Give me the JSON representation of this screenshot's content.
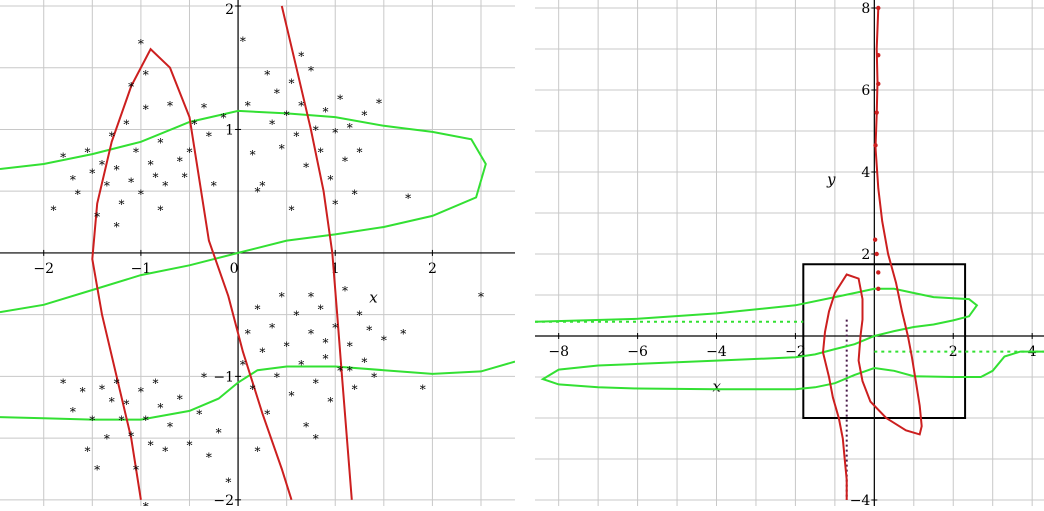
{
  "chart_data": [
    {
      "type": "scatter",
      "xlabel": "x",
      "ylabel": "",
      "xlim": [
        -2.45,
        2.85
      ],
      "ylim": [
        -2.05,
        2.0
      ],
      "grid": true,
      "x_ticks": [
        -2,
        -1,
        0,
        1,
        2
      ],
      "y_ticks": [
        -2,
        -1,
        1,
        2
      ],
      "marker": "*",
      "colors": {
        "red_curve": "#cc1f1f",
        "green_curve": "#33e033",
        "points": "#000000",
        "grid": "#c8c8c8"
      },
      "red_curves": [
        [
          [
            -1.0,
            -2.0
          ],
          [
            -1.1,
            -1.5
          ],
          [
            -1.25,
            -1.0
          ],
          [
            -1.4,
            -0.5
          ],
          [
            -1.5,
            -0.05
          ],
          [
            -1.45,
            0.4
          ],
          [
            -1.3,
            0.9
          ],
          [
            -1.1,
            1.35
          ],
          [
            -0.9,
            1.65
          ],
          [
            -0.7,
            1.5
          ],
          [
            -0.5,
            1.1
          ],
          [
            -0.4,
            0.6
          ],
          [
            -0.3,
            0.1
          ],
          [
            -0.1,
            -0.35
          ],
          [
            0.05,
            -0.8
          ],
          [
            0.25,
            -1.3
          ],
          [
            0.45,
            -1.75
          ],
          [
            0.55,
            -2.0
          ]
        ],
        [
          [
            0.45,
            2.0
          ],
          [
            0.6,
            1.5
          ],
          [
            0.75,
            1.0
          ],
          [
            0.88,
            0.5
          ],
          [
            0.97,
            0.0
          ],
          [
            1.02,
            -0.5
          ],
          [
            1.07,
            -1.0
          ],
          [
            1.12,
            -1.5
          ],
          [
            1.17,
            -2.0
          ]
        ]
      ],
      "green_curves": [
        [
          [
            -2.45,
            0.68
          ],
          [
            -2.0,
            0.72
          ],
          [
            -1.5,
            0.8
          ],
          [
            -1.0,
            0.9
          ],
          [
            -0.5,
            1.06
          ],
          [
            0.0,
            1.15
          ],
          [
            0.5,
            1.13
          ],
          [
            1.0,
            1.1
          ],
          [
            1.5,
            1.03
          ],
          [
            2.0,
            0.98
          ],
          [
            2.4,
            0.92
          ],
          [
            2.55,
            0.72
          ],
          [
            2.45,
            0.45
          ],
          [
            2.0,
            0.3
          ],
          [
            1.5,
            0.21
          ],
          [
            1.0,
            0.15
          ],
          [
            0.5,
            0.1
          ],
          [
            0.0,
            0.0
          ],
          [
            -0.5,
            -0.1
          ],
          [
            -1.0,
            -0.18
          ],
          [
            -1.5,
            -0.3
          ],
          [
            -2.0,
            -0.42
          ],
          [
            -2.45,
            -0.48
          ]
        ],
        [
          [
            -2.45,
            -1.33
          ],
          [
            -2.0,
            -1.34
          ],
          [
            -1.5,
            -1.35
          ],
          [
            -1.0,
            -1.35
          ],
          [
            -0.5,
            -1.28
          ],
          [
            -0.2,
            -1.18
          ],
          [
            0.0,
            -1.05
          ],
          [
            0.2,
            -0.95
          ],
          [
            0.5,
            -0.92
          ],
          [
            1.0,
            -0.92
          ],
          [
            1.5,
            -0.95
          ],
          [
            2.0,
            -0.98
          ],
          [
            2.5,
            -0.96
          ],
          [
            2.85,
            -0.88
          ]
        ]
      ],
      "points": [
        [
          -1.9,
          0.35
        ],
        [
          -1.8,
          0.78
        ],
        [
          -1.7,
          0.6
        ],
        [
          -1.65,
          0.48
        ],
        [
          -1.55,
          0.82
        ],
        [
          -1.5,
          0.65
        ],
        [
          -1.45,
          0.3
        ],
        [
          -1.4,
          0.72
        ],
        [
          -1.35,
          0.55
        ],
        [
          -1.3,
          0.95
        ],
        [
          -1.25,
          0.68
        ],
        [
          -1.2,
          0.4
        ],
        [
          -1.15,
          1.05
        ],
        [
          -1.1,
          0.58
        ],
        [
          -1.05,
          0.82
        ],
        [
          -1.0,
          0.48
        ],
        [
          -0.95,
          1.17
        ],
        [
          -0.9,
          0.72
        ],
        [
          -0.85,
          0.62
        ],
        [
          -0.8,
          0.9
        ],
        [
          -0.75,
          0.55
        ],
        [
          -0.7,
          1.2
        ],
        [
          -0.6,
          0.75
        ],
        [
          -0.5,
          0.82
        ],
        [
          -0.45,
          1.05
        ],
        [
          -0.35,
          1.18
        ],
        [
          -0.3,
          0.95
        ],
        [
          -0.25,
          0.55
        ],
        [
          -0.15,
          1.1
        ],
        [
          -1.1,
          1.35
        ],
        [
          -0.95,
          1.45
        ],
        [
          -1.25,
          0.22
        ],
        [
          -0.55,
          0.62
        ],
        [
          -1.0,
          1.7
        ],
        [
          -0.8,
          0.35
        ],
        [
          0.05,
          1.72
        ],
        [
          0.1,
          1.2
        ],
        [
          0.15,
          0.8
        ],
        [
          0.2,
          0.5
        ],
        [
          0.3,
          1.45
        ],
        [
          0.35,
          1.05
        ],
        [
          0.4,
          1.3
        ],
        [
          0.45,
          0.85
        ],
        [
          0.5,
          1.12
        ],
        [
          0.55,
          1.38
        ],
        [
          0.6,
          0.95
        ],
        [
          0.65,
          1.2
        ],
        [
          0.7,
          0.7
        ],
        [
          0.75,
          1.48
        ],
        [
          0.8,
          1.0
        ],
        [
          0.85,
          0.82
        ],
        [
          0.9,
          1.15
        ],
        [
          0.95,
          0.6
        ],
        [
          1.0,
          0.98
        ],
        [
          1.05,
          1.25
        ],
        [
          1.1,
          0.75
        ],
        [
          1.15,
          1.02
        ],
        [
          1.2,
          0.48
        ],
        [
          1.25,
          0.82
        ],
        [
          1.3,
          1.12
        ],
        [
          1.45,
          1.22
        ],
        [
          0.25,
          0.55
        ],
        [
          0.55,
          0.35
        ],
        [
          1.0,
          0.4
        ],
        [
          0.65,
          1.6
        ],
        [
          1.75,
          0.45
        ],
        [
          0.05,
          -0.9
        ],
        [
          0.1,
          -0.65
        ],
        [
          0.15,
          -1.1
        ],
        [
          0.2,
          -0.45
        ],
        [
          0.25,
          -0.8
        ],
        [
          0.3,
          -1.3
        ],
        [
          0.35,
          -0.6
        ],
        [
          0.4,
          -1.0
        ],
        [
          0.45,
          -0.35
        ],
        [
          0.5,
          -0.75
        ],
        [
          0.55,
          -1.15
        ],
        [
          0.6,
          -0.5
        ],
        [
          0.65,
          -0.9
        ],
        [
          0.7,
          -1.4
        ],
        [
          0.75,
          -0.65
        ],
        [
          0.8,
          -1.05
        ],
        [
          0.85,
          -0.45
        ],
        [
          0.9,
          -0.85
        ],
        [
          0.95,
          -1.2
        ],
        [
          1.0,
          -0.6
        ],
        [
          1.05,
          -0.95
        ],
        [
          1.1,
          -0.3
        ],
        [
          1.15,
          -0.75
        ],
        [
          1.2,
          -1.1
        ],
        [
          1.25,
          -0.5
        ],
        [
          1.3,
          -0.88
        ],
        [
          1.35,
          -0.62
        ],
        [
          1.4,
          -1.0
        ],
        [
          1.5,
          -0.7
        ],
        [
          1.7,
          -0.65
        ],
        [
          1.9,
          -1.1
        ],
        [
          0.8,
          -1.5
        ],
        [
          0.2,
          -1.6
        ],
        [
          2.5,
          -0.35
        ],
        [
          0.75,
          -0.35
        ],
        [
          1.15,
          -0.95
        ],
        [
          0.9,
          -0.72
        ],
        [
          -1.8,
          -1.05
        ],
        [
          -1.7,
          -1.28
        ],
        [
          -1.6,
          -1.12
        ],
        [
          -1.5,
          -1.35
        ],
        [
          -1.4,
          -1.1
        ],
        [
          -1.35,
          -1.5
        ],
        [
          -1.3,
          -1.2
        ],
        [
          -1.25,
          -1.05
        ],
        [
          -1.2,
          -1.35
        ],
        [
          -1.15,
          -1.22
        ],
        [
          -1.1,
          -1.48
        ],
        [
          -1.0,
          -1.12
        ],
        [
          -0.95,
          -1.35
        ],
        [
          -0.9,
          -1.55
        ],
        [
          -0.85,
          -1.05
        ],
        [
          -0.8,
          -1.25
        ],
        [
          -0.7,
          -1.4
        ],
        [
          -0.6,
          -1.18
        ],
        [
          -0.5,
          -1.55
        ],
        [
          -0.4,
          -1.3
        ],
        [
          -0.35,
          -1.0
        ],
        [
          -0.3,
          -1.65
        ],
        [
          -0.2,
          -1.45
        ],
        [
          -1.55,
          -1.6
        ],
        [
          -1.45,
          -1.75
        ],
        [
          -0.1,
          -1.85
        ],
        [
          -0.95,
          -2.05
        ],
        [
          -1.05,
          -1.75
        ],
        [
          -0.75,
          -1.6
        ]
      ]
    },
    {
      "type": "line",
      "xlabel": "x",
      "ylabel": "y",
      "xlim": [
        -8.6,
        4.3
      ],
      "ylim": [
        -4.0,
        8.0
      ],
      "grid": true,
      "x_ticks": [
        -8,
        -6,
        -4,
        -2,
        0,
        2,
        4
      ],
      "y_ticks": [
        -4,
        2,
        4,
        6,
        8
      ],
      "box": {
        "x": [
          -1.8,
          2.3
        ],
        "y": [
          -2.0,
          1.75
        ]
      },
      "colors": {
        "red_curve": "#cc1f1f",
        "green_curve": "#33e033",
        "box": "#000000",
        "grid": "#c8c8c8",
        "dotted_vertical": "#4a1a4a"
      },
      "red_curves": [
        [
          [
            -0.7,
            -4.0
          ],
          [
            -0.7,
            -3.5
          ],
          [
            -0.75,
            -3.0
          ],
          [
            -0.8,
            -2.5
          ],
          [
            -0.9,
            -2.0
          ],
          [
            -1.05,
            -1.5
          ],
          [
            -1.15,
            -1.0
          ],
          [
            -1.3,
            -0.4
          ],
          [
            -1.25,
            0.1
          ],
          [
            -1.15,
            0.6
          ],
          [
            -1.0,
            1.05
          ],
          [
            -0.7,
            1.5
          ],
          [
            -0.4,
            1.4
          ],
          [
            -0.3,
            0.9
          ],
          [
            -0.3,
            0.4
          ],
          [
            -0.35,
            0.0
          ],
          [
            -0.4,
            -0.6
          ],
          [
            -0.3,
            -1.1
          ],
          [
            -0.1,
            -1.6
          ],
          [
            0.3,
            -2.0
          ],
          [
            0.8,
            -2.3
          ],
          [
            1.15,
            -2.4
          ],
          [
            1.2,
            -2.2
          ],
          [
            1.15,
            -1.7
          ],
          [
            1.05,
            -1.1
          ],
          [
            0.95,
            -0.5
          ],
          [
            0.85,
            0.0
          ],
          [
            0.7,
            0.6
          ],
          [
            0.55,
            1.3
          ],
          [
            0.35,
            2.0
          ],
          [
            0.2,
            2.8
          ],
          [
            0.1,
            3.6
          ],
          [
            0.03,
            4.6
          ],
          [
            0.06,
            5.4
          ],
          [
            0.08,
            6.2
          ],
          [
            0.06,
            7.0
          ],
          [
            0.1,
            8.0
          ]
        ]
      ],
      "green_curves": [
        [
          [
            -8.6,
            0.35
          ],
          [
            -6.0,
            0.42
          ],
          [
            -4.0,
            0.55
          ],
          [
            -2.0,
            0.75
          ],
          [
            -1.0,
            0.95
          ],
          [
            -0.5,
            1.05
          ],
          [
            0.0,
            1.15
          ],
          [
            0.5,
            1.15
          ],
          [
            1.0,
            1.05
          ],
          [
            1.5,
            0.95
          ],
          [
            2.0,
            0.92
          ],
          [
            2.4,
            0.9
          ],
          [
            2.6,
            0.75
          ],
          [
            2.4,
            0.48
          ],
          [
            2.0,
            0.38
          ],
          [
            1.5,
            0.28
          ],
          [
            1.0,
            0.22
          ],
          [
            0.5,
            0.12
          ],
          [
            0.0,
            0.0
          ],
          [
            -0.5,
            -0.2
          ],
          [
            -1.0,
            -0.32
          ],
          [
            -1.5,
            -0.45
          ],
          [
            -2.0,
            -0.52
          ],
          [
            -4.0,
            -0.6
          ],
          [
            -6.0,
            -0.68
          ],
          [
            -7.0,
            -0.72
          ],
          [
            -8.0,
            -0.82
          ],
          [
            -8.4,
            -1.05
          ],
          [
            -8.0,
            -1.18
          ],
          [
            -7.0,
            -1.25
          ],
          [
            -6.0,
            -1.28
          ],
          [
            -4.0,
            -1.3
          ],
          [
            -2.0,
            -1.3
          ],
          [
            -1.5,
            -1.25
          ],
          [
            -1.0,
            -1.15
          ],
          [
            -0.5,
            -0.95
          ],
          [
            0.0,
            -0.78
          ],
          [
            0.5,
            -0.85
          ],
          [
            1.0,
            -0.98
          ],
          [
            2.0,
            -1.0
          ],
          [
            2.7,
            -1.0
          ],
          [
            3.0,
            -0.85
          ],
          [
            3.3,
            -0.5
          ],
          [
            3.7,
            -0.38
          ],
          [
            4.3,
            -0.38
          ]
        ]
      ],
      "dotted_lines": [
        [
          [
            -8.6,
            0.35
          ],
          [
            -1.8,
            0.35
          ]
        ],
        [
          [
            0.0,
            -0.38
          ],
          [
            4.3,
            -0.38
          ]
        ]
      ],
      "markers": [
        [
          0.1,
          8.0
        ],
        [
          0.1,
          6.85
        ],
        [
          0.1,
          6.15
        ],
        [
          0.06,
          5.45
        ],
        [
          0.03,
          4.65
        ],
        [
          0.02,
          2.35
        ],
        [
          0.06,
          2.0
        ],
        [
          0.1,
          1.55
        ],
        [
          0.1,
          1.15
        ]
      ]
    }
  ]
}
